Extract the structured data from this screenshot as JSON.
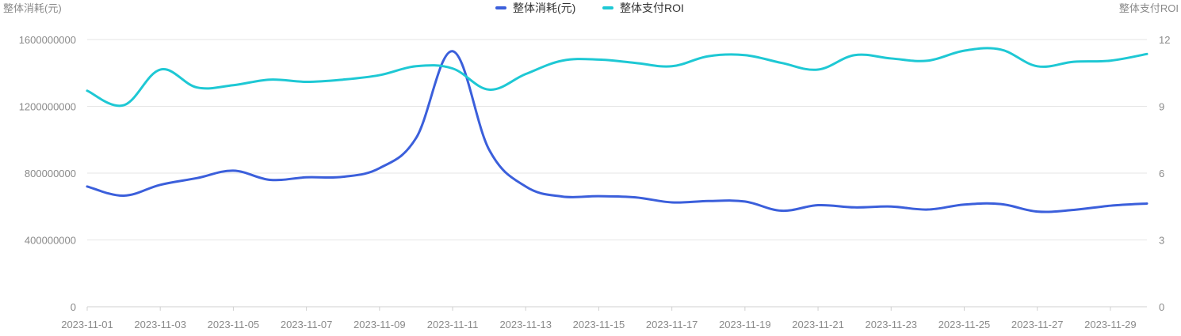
{
  "chart_data": {
    "type": "line",
    "x": [
      "2023-11-01",
      "2023-11-02",
      "2023-11-03",
      "2023-11-04",
      "2023-11-05",
      "2023-11-06",
      "2023-11-07",
      "2023-11-08",
      "2023-11-09",
      "2023-11-10",
      "2023-11-11",
      "2023-11-12",
      "2023-11-13",
      "2023-11-14",
      "2023-11-15",
      "2023-11-16",
      "2023-11-17",
      "2023-11-18",
      "2023-11-19",
      "2023-11-20",
      "2023-11-21",
      "2023-11-22",
      "2023-11-23",
      "2023-11-24",
      "2023-11-25",
      "2023-11-26",
      "2023-11-27",
      "2023-11-28",
      "2023-11-29",
      "2023-11-30"
    ],
    "x_tick_labels": [
      "2023-11-01",
      "2023-11-03",
      "2023-11-05",
      "2023-11-07",
      "2023-11-09",
      "2023-11-11",
      "2023-11-13",
      "2023-11-15",
      "2023-11-17",
      "2023-11-19",
      "2023-11-21",
      "2023-11-23",
      "2023-11-25",
      "2023-11-27",
      "2023-11-29"
    ],
    "y_left": {
      "label": "整体消耗(元)",
      "ylim": [
        0,
        1600000000
      ],
      "ticks": [
        "0",
        "400000000",
        "800000000",
        "1200000000",
        "1600000000"
      ]
    },
    "y_right": {
      "label": "整体支付ROI",
      "ylim": [
        0,
        12
      ],
      "ticks": [
        "0",
        "3",
        "6",
        "9",
        "12"
      ]
    },
    "series": [
      {
        "name": "整体消耗(元)",
        "axis": "left",
        "color": "#3b5fdb",
        "values": [
          720000000,
          665000000,
          730000000,
          770000000,
          815000000,
          760000000,
          775000000,
          778000000,
          830000000,
          1010000000,
          1530000000,
          940000000,
          720000000,
          660000000,
          662000000,
          655000000,
          625000000,
          633000000,
          630000000,
          575000000,
          608000000,
          595000000,
          600000000,
          582000000,
          612000000,
          615000000,
          570000000,
          580000000,
          605000000,
          618000000
        ]
      },
      {
        "name": "整体支付ROI",
        "axis": "right",
        "color": "#1ec8d4",
        "values": [
          9.7,
          9.05,
          10.65,
          9.85,
          9.95,
          10.2,
          10.1,
          10.2,
          10.4,
          10.8,
          10.7,
          9.75,
          10.45,
          11.05,
          11.1,
          10.95,
          10.8,
          11.25,
          11.3,
          10.95,
          10.65,
          11.3,
          11.15,
          11.05,
          11.5,
          11.55,
          10.8,
          11.0,
          11.05,
          11.35
        ]
      }
    ],
    "grid": true,
    "legend_position": "top-center"
  }
}
